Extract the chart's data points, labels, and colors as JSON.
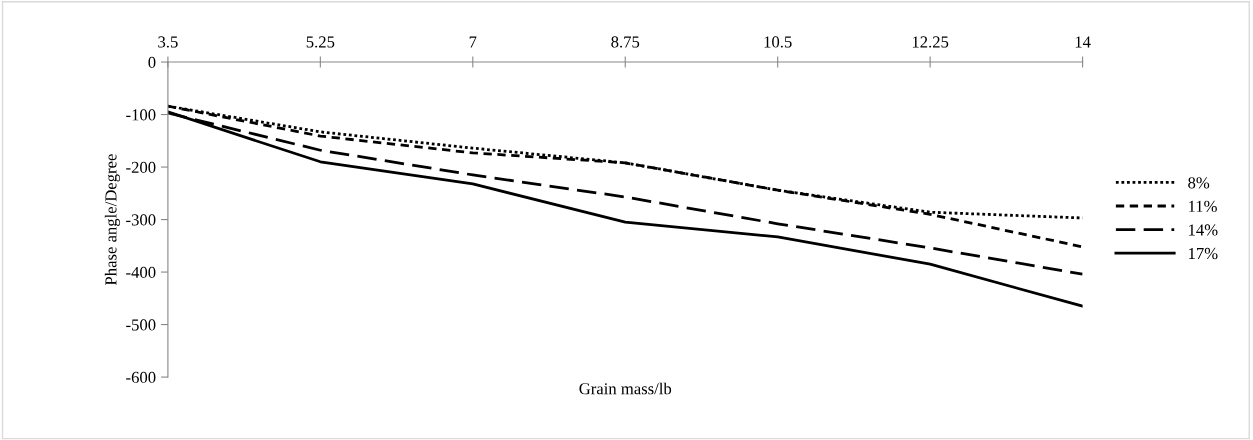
{
  "chart_data": {
    "type": "line",
    "xlabel": "Grain mass/lb",
    "ylabel": "Phase angle/Degree",
    "x": [
      3.5,
      5.25,
      7,
      8.75,
      10.5,
      12.25,
      14
    ],
    "xlim": [
      3.5,
      14
    ],
    "xticks": [
      3.5,
      5.25,
      7,
      8.75,
      10.5,
      12.25,
      14
    ],
    "ylim": [
      -600,
      0
    ],
    "yticks": [
      -600,
      -500,
      -400,
      -300,
      -200,
      -100,
      0
    ],
    "grid": false,
    "legend": "right",
    "marker": "none",
    "series": [
      {
        "name": "8%",
        "color": "#000000",
        "line_style": "dotted",
        "values": [
          -84,
          -133,
          -164,
          -192,
          -244,
          -286,
          -297
        ]
      },
      {
        "name": "11%",
        "color": "#000000",
        "line_style": "dashed",
        "values": [
          -84,
          -141,
          -173,
          -192,
          -244,
          -290,
          -352
        ]
      },
      {
        "name": "14%",
        "color": "#000000",
        "line_style": "long dashed",
        "values": [
          -97,
          -168,
          -215,
          -257,
          -308,
          -354,
          -404
        ]
      },
      {
        "name": "17%",
        "color": "#000000",
        "line_style": "solid",
        "values": [
          -95,
          -190,
          -232,
          -305,
          -333,
          -385,
          -465
        ]
      }
    ]
  }
}
